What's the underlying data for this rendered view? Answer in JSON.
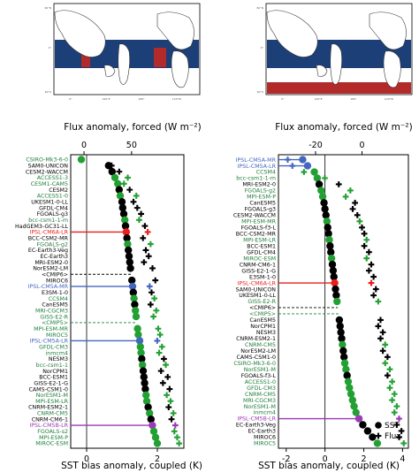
{
  "colors": {
    "black": "#000000",
    "cmip6_green": "#1e7f3a",
    "cmip5_green": "#23a033",
    "ipsl_red": "#ee1c1c",
    "ipsl_blue": "#4466c0",
    "ipsl_purple": "#9c39b5",
    "map_blue": "#1c3f77",
    "map_red": "#b22a2a",
    "land": "#ffffff",
    "coast": "#333333"
  },
  "maps": {
    "left": {
      "title": "Flux anomaly, forced (W m⁻²)",
      "ticks": [
        0,
        50
      ],
      "xlim": [
        -14,
        105
      ]
    },
    "right": {
      "title": "Flux anomaly, forced (W m⁻²)",
      "ticks": [
        -20,
        0
      ],
      "xlim": [
        -36,
        20
      ]
    }
  },
  "chart_data": [
    {
      "type": "scatter",
      "xlabel": "SST bias anomaly, coupled (K)",
      "xlim": [
        -0.45,
        2.75
      ],
      "xticks": [
        0,
        2
      ],
      "top_axis_label": "Flux anomaly, forced (W m⁻²)",
      "top_ticks": [
        0,
        50
      ],
      "legend": null,
      "models": [
        {
          "name": "CSIRO-Mk3-6-0",
          "group": "cmip5",
          "sst": -0.15,
          "flux": null,
          "dashed": false
        },
        {
          "name": "SAM0-UNICON",
          "group": "cmip6",
          "sst": 0.62,
          "flux": 29,
          "dashed": false
        },
        {
          "name": "CESM2-WACCM",
          "group": "cmip6",
          "sst": 0.72,
          "flux": 37,
          "dashed": false
        },
        {
          "name": "ACCESS1-3",
          "group": "cmip5",
          "sst": 0.8,
          "flux": 46,
          "dashed": false
        },
        {
          "name": "CESM1-CAM5",
          "group": "cmip5",
          "sst": 0.88,
          "flux": 42,
          "dashed": false
        },
        {
          "name": "CESM2",
          "group": "cmip6",
          "sst": 0.92,
          "flux": 48,
          "dashed": false
        },
        {
          "name": "ACCESS1-0",
          "group": "cmip5",
          "sst": 0.95,
          "flux": 55,
          "dashed": false
        },
        {
          "name": "UKESM1-0-LL",
          "group": "cmip6",
          "sst": 1.0,
          "flux": 52,
          "dashed": false
        },
        {
          "name": "GFDL-CM4",
          "group": "cmip6",
          "sst": 1.02,
          "flux": 56,
          "dashed": false
        },
        {
          "name": "FGOALS-g3",
          "group": "cmip6",
          "sst": 1.05,
          "flux": 60,
          "dashed": false
        },
        {
          "name": "bcc-csm1-1-m",
          "group": "cmip5",
          "sst": 1.08,
          "flux": 58,
          "dashed": false
        },
        {
          "name": "HadGEM3-GC31-LL",
          "group": "cmip6",
          "sst": 1.1,
          "flux": 64,
          "dashed": false
        },
        {
          "name": "IPSL-CM6A-LR",
          "group": "ipsl_red",
          "sst": 1.12,
          "flux": 67,
          "dashed": false
        },
        {
          "name": "BCC-CSM2-MR",
          "group": "cmip6",
          "sst": 1.14,
          "flux": 62,
          "dashed": false
        },
        {
          "name": "FGOALS-g2",
          "group": "cmip5",
          "sst": 1.16,
          "flux": 70,
          "dashed": false
        },
        {
          "name": "EC-Earth3-Veg",
          "group": "cmip6",
          "sst": 1.18,
          "flux": 65,
          "dashed": false
        },
        {
          "name": "EC-Earth3",
          "group": "cmip6",
          "sst": 1.2,
          "flux": 68,
          "dashed": false
        },
        {
          "name": "MRI-ESM2-0",
          "group": "cmip6",
          "sst": 1.22,
          "flux": 63,
          "dashed": false
        },
        {
          "name": "NorESM2-LM",
          "group": "cmip6",
          "sst": 1.24,
          "flux": 72,
          "dashed": false
        },
        {
          "name": "<CMIP6>",
          "group": "cmip6",
          "sst": 1.26,
          "flux": null,
          "dashed": true
        },
        {
          "name": "MIROC6",
          "group": "cmip6",
          "sst": 1.28,
          "flux": 75,
          "dashed": false
        },
        {
          "name": "IPSL-CM5A-MR",
          "group": "ipsl_blue",
          "sst": 1.3,
          "flux": 69,
          "dashed": false
        },
        {
          "name": "E3SM-1-0",
          "group": "cmip6",
          "sst": 1.32,
          "flux": 71,
          "dashed": false
        },
        {
          "name": "CCSM4",
          "group": "cmip5",
          "sst": 1.34,
          "flux": 74,
          "dashed": false
        },
        {
          "name": "CanESM5",
          "group": "cmip6",
          "sst": 1.36,
          "flux": 70,
          "dashed": false
        },
        {
          "name": "MRI-CGCM3",
          "group": "cmip5",
          "sst": 1.38,
          "flux": 76,
          "dashed": false
        },
        {
          "name": "GISS-E2-R",
          "group": "cmip5",
          "sst": 1.4,
          "flux": 73,
          "dashed": false
        },
        {
          "name": "<CMIP5>",
          "group": "cmip5",
          "sst": 1.42,
          "flux": null,
          "dashed": true
        },
        {
          "name": "MPI-ESM-MR",
          "group": "cmip5",
          "sst": 1.44,
          "flux": 78,
          "dashed": false
        },
        {
          "name": "MIROC5",
          "group": "cmip5",
          "sst": 1.46,
          "flux": 80,
          "dashed": false
        },
        {
          "name": "IPSL-CM5A-LR",
          "group": "ipsl_blue",
          "sst": 1.5,
          "flux": 77,
          "dashed": false
        },
        {
          "name": "GFDL-CM3",
          "group": "cmip5",
          "sst": 1.52,
          "flux": 82,
          "dashed": false
        },
        {
          "name": "inmcm4",
          "group": "cmip5",
          "sst": 1.54,
          "flux": 79,
          "dashed": false
        },
        {
          "name": "NESM3",
          "group": "cmip6",
          "sst": 1.56,
          "flux": 84,
          "dashed": false
        },
        {
          "name": "bcc-csm1-1",
          "group": "cmip5",
          "sst": 1.58,
          "flux": 86,
          "dashed": false
        },
        {
          "name": "NorCPM1",
          "group": "cmip6",
          "sst": 1.6,
          "flux": 81,
          "dashed": false
        },
        {
          "name": "BCC-ESM1",
          "group": "cmip6",
          "sst": 1.62,
          "flux": 88,
          "dashed": false
        },
        {
          "name": "GISS-E2-1-G",
          "group": "cmip6",
          "sst": 1.64,
          "flux": 83,
          "dashed": false
        },
        {
          "name": "CAMS-CSM1-0",
          "group": "cmip6",
          "sst": 1.66,
          "flux": 90,
          "dashed": false
        },
        {
          "name": "NorESM1-M",
          "group": "cmip5",
          "sst": 1.68,
          "flux": 87,
          "dashed": false
        },
        {
          "name": "MPI-ESM-LR",
          "group": "cmip5",
          "sst": 1.7,
          "flux": 91,
          "dashed": false
        },
        {
          "name": "CNRM-ESM2-1",
          "group": "cmip6",
          "sst": 1.74,
          "flux": 89,
          "dashed": false
        },
        {
          "name": "CNRM-CM5",
          "group": "cmip5",
          "sst": 1.78,
          "flux": 94,
          "dashed": false
        },
        {
          "name": "CNRM-CM6-1",
          "group": "cmip6",
          "sst": 1.82,
          "flux": 92,
          "dashed": false
        },
        {
          "name": "IPSL-CM5B-LR",
          "group": "ipsl_purple",
          "sst": 1.86,
          "flux": 96,
          "dashed": false
        },
        {
          "name": "FGOALS-s2",
          "group": "cmip5",
          "sst": 1.9,
          "flux": 95,
          "dashed": false
        },
        {
          "name": "MPI-ESM-P",
          "group": "cmip5",
          "sst": 1.95,
          "flux": 98,
          "dashed": false
        },
        {
          "name": "MIROC-ESM",
          "group": "cmip5",
          "sst": 2.0,
          "flux": 100,
          "dashed": false
        }
      ]
    },
    {
      "type": "scatter",
      "xlabel": "SST bias anomaly, coupled (K)",
      "xlim": [
        -2.4,
        4.3
      ],
      "xticks": [
        -2,
        0,
        2,
        4
      ],
      "top_axis_label": "Flux anomaly, forced (W m⁻²)",
      "top_ticks": [
        -20,
        0
      ],
      "legend": {
        "position": "lower-right",
        "items": [
          "SST",
          "Flux"
        ]
      },
      "models": [
        {
          "name": "IPSL-CM5A-MR",
          "group": "ipsl_blue",
          "sst": -1.15,
          "flux": -32,
          "dashed": false
        },
        {
          "name": "IPSL-CM5A-LR",
          "group": "ipsl_blue",
          "sst": -0.9,
          "flux": -30,
          "dashed": false
        },
        {
          "name": "CCSM4",
          "group": "cmip5",
          "sst": -0.55,
          "flux": -25,
          "dashed": false
        },
        {
          "name": "bcc-csm1-1-m",
          "group": "cmip5",
          "sst": -0.4,
          "flux": -16,
          "dashed": false
        },
        {
          "name": "MRI-ESM2-0",
          "group": "cmip6",
          "sst": -0.3,
          "flux": -10,
          "dashed": false
        },
        {
          "name": "FGOALS-g2",
          "group": "cmip5",
          "sst": -0.2,
          "flux": -5,
          "dashed": false
        },
        {
          "name": "MPI-ESM-P",
          "group": "cmip5",
          "sst": -0.12,
          "flux": -7,
          "dashed": false
        },
        {
          "name": "CanESM5",
          "group": "cmip6",
          "sst": -0.05,
          "flux": -3,
          "dashed": false
        },
        {
          "name": "FGOALS-g3",
          "group": "cmip6",
          "sst": 0.0,
          "flux": -4,
          "dashed": false
        },
        {
          "name": "CESM2-WACCM",
          "group": "cmip6",
          "sst": 0.05,
          "flux": -2,
          "dashed": false
        },
        {
          "name": "MPI-ESM-MR",
          "group": "cmip5",
          "sst": 0.1,
          "flux": -1,
          "dashed": false
        },
        {
          "name": "FGOALS-f3-L",
          "group": "cmip6",
          "sst": 0.14,
          "flux": 0,
          "dashed": false
        },
        {
          "name": "BCC-CSM2-MR",
          "group": "cmip6",
          "sst": 0.18,
          "flux": 1,
          "dashed": false
        },
        {
          "name": "MPI-ESM-LR",
          "group": "cmip5",
          "sst": 0.22,
          "flux": 2,
          "dashed": false
        },
        {
          "name": "BCC-ESM1",
          "group": "cmip6",
          "sst": 0.26,
          "flux": 1,
          "dashed": false
        },
        {
          "name": "GFDL-CM4",
          "group": "cmip6",
          "sst": 0.3,
          "flux": 3,
          "dashed": false
        },
        {
          "name": "MIROC-ESM",
          "group": "cmip5",
          "sst": 0.34,
          "flux": 2,
          "dashed": false
        },
        {
          "name": "CNRM-CM6-1",
          "group": "cmip6",
          "sst": 0.38,
          "flux": 4,
          "dashed": false
        },
        {
          "name": "GISS-E2-1-G",
          "group": "cmip6",
          "sst": 0.42,
          "flux": 3,
          "dashed": false
        },
        {
          "name": "E3SM-1-0",
          "group": "cmip6",
          "sst": 0.46,
          "flux": 5,
          "dashed": false
        },
        {
          "name": "IPSL-CM6A-LR",
          "group": "ipsl_red",
          "sst": 0.5,
          "flux": 4,
          "dashed": false
        },
        {
          "name": "SAM0-UNICON",
          "group": "cmip6",
          "sst": 0.54,
          "flux": 6,
          "dashed": false
        },
        {
          "name": "UKESM1-0-LL",
          "group": "cmip6",
          "sst": 0.58,
          "flux": 5,
          "dashed": false
        },
        {
          "name": "GISS-E2-R",
          "group": "cmip5",
          "sst": 0.62,
          "flux": 7,
          "dashed": false
        },
        {
          "name": "<CMIP6>",
          "group": "cmip6",
          "sst": 0.66,
          "flux": null,
          "dashed": true
        },
        {
          "name": "<CMIP5>",
          "group": "cmip5",
          "sst": 0.7,
          "flux": null,
          "dashed": true
        },
        {
          "name": "CanESM5",
          "group": "cmip6",
          "sst": 0.74,
          "flux": 8,
          "dashed": false
        },
        {
          "name": "NorCPM1",
          "group": "cmip6",
          "sst": 0.78,
          "flux": 7,
          "dashed": false
        },
        {
          "name": "NESM3",
          "group": "cmip6",
          "sst": 0.82,
          "flux": 9,
          "dashed": false
        },
        {
          "name": "CNRM-ESM2-1",
          "group": "cmip6",
          "sst": 0.86,
          "flux": 8,
          "dashed": false
        },
        {
          "name": "CNRM-CM5",
          "group": "cmip5",
          "sst": 0.9,
          "flux": 10,
          "dashed": false
        },
        {
          "name": "NorESM2-LM",
          "group": "cmip6",
          "sst": 0.94,
          "flux": 9,
          "dashed": false
        },
        {
          "name": "CAMS-CSM1-0",
          "group": "cmip6",
          "sst": 0.98,
          "flux": 11,
          "dashed": false
        },
        {
          "name": "CSIRO-Mk3-6-0",
          "group": "cmip5",
          "sst": 1.02,
          "flux": 10,
          "dashed": false
        },
        {
          "name": "NorESM1-M",
          "group": "cmip5",
          "sst": 1.08,
          "flux": 12,
          "dashed": false
        },
        {
          "name": "FGOALS-f3-L",
          "group": "cmip6",
          "sst": 1.14,
          "flux": 11,
          "dashed": false
        },
        {
          "name": "ACCESS1-0",
          "group": "cmip5",
          "sst": 1.2,
          "flux": 13,
          "dashed": false
        },
        {
          "name": "GFDL-CM3",
          "group": "cmip5",
          "sst": 1.26,
          "flux": 12,
          "dashed": false
        },
        {
          "name": "CNRM-CM5",
          "group": "cmip5",
          "sst": 1.34,
          "flux": 14,
          "dashed": false
        },
        {
          "name": "MRI-CGCM3",
          "group": "cmip5",
          "sst": 1.42,
          "flux": 13,
          "dashed": false
        },
        {
          "name": "NorESM1-M",
          "group": "cmip5",
          "sst": 1.5,
          "flux": 15,
          "dashed": false
        },
        {
          "name": "inmcm4",
          "group": "cmip5",
          "sst": 1.6,
          "flux": 14,
          "dashed": false
        },
        {
          "name": "IPSL-CM5B-LR",
          "group": "ipsl_purple",
          "sst": 1.75,
          "flux": 16,
          "dashed": false
        },
        {
          "name": "EC-Earth3-Veg",
          "group": "cmip6",
          "sst": 1.95,
          "flux": 15,
          "dashed": false
        },
        {
          "name": "EC-Earth3",
          "group": "cmip6",
          "sst": 2.2,
          "flux": 17,
          "dashed": false
        },
        {
          "name": "MIROC6",
          "group": "cmip6",
          "sst": 2.45,
          "flux": 16,
          "dashed": false
        },
        {
          "name": "MIROC5",
          "group": "cmip5",
          "sst": 2.7,
          "flux": 18,
          "dashed": false
        }
      ]
    }
  ]
}
